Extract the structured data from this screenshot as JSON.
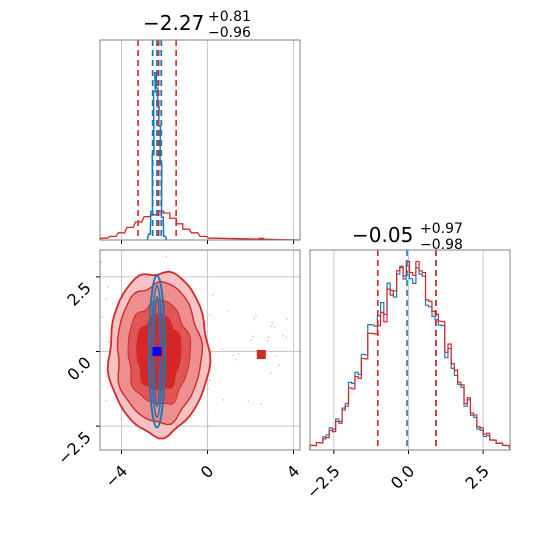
{
  "chart_data": {
    "type": "corner",
    "colors": {
      "red": "#d62728",
      "blue": "#1f77b4",
      "grid": "#c8c8c8",
      "frame": "#808080"
    },
    "params": [
      {
        "title": "−2.27",
        "upper": "+0.81",
        "lower": "−0.96",
        "median": -2.27,
        "range": [
          -5,
          4.3
        ]
      },
      {
        "title": "−0.05",
        "upper": "+0.97",
        "lower": "−0.98",
        "median": -0.05,
        "range": [
          -3.3,
          3.4
        ]
      }
    ],
    "x_ticks": [
      {
        "value": -4,
        "label": "−4"
      },
      {
        "value": 0,
        "label": "0"
      },
      {
        "value": 4,
        "label": "4"
      }
    ],
    "y_ticks": [
      {
        "value": 2.5,
        "label": "2.5"
      },
      {
        "value": 0.0,
        "label": "0.0"
      },
      {
        "value": -2.5,
        "label": "−2.5"
      }
    ],
    "x2_ticks": [
      {
        "value": -2.5,
        "label": "−2.5"
      },
      {
        "value": 0.0,
        "label": "0.0"
      },
      {
        "value": 2.5,
        "label": "2.5"
      }
    ],
    "hist1_red_quantiles": [
      -3.23,
      -2.27,
      -1.46
    ],
    "hist1_blue_quantiles": [
      -2.55,
      -2.35,
      -2.15
    ],
    "hist2_red_quantiles": [
      -1.03,
      -0.05,
      0.92
    ],
    "hist2_blue_quantiles": [
      -1.03,
      -0.05,
      0.92
    ],
    "hist1_red_heights": [
      0.01,
      0.02,
      0.04,
      0.07,
      0.1,
      0.13,
      0.14,
      0.16,
      0.15,
      0.12,
      0.09,
      0.06,
      0.04,
      0.02,
      0.01
    ],
    "hist1_red_centers": [
      -4.8,
      -4.4,
      -4.0,
      -3.6,
      -3.2,
      -2.8,
      -2.5,
      -2.2,
      -1.9,
      -1.6,
      -1.3,
      -1.0,
      -0.6,
      -0.2,
      0.2
    ],
    "hist1_blue_center": -2.35,
    "hist1_blue_width": 0.12,
    "hist2_red_heights": [
      0.02,
      0.03,
      0.05,
      0.08,
      0.12,
      0.18,
      0.25,
      0.32,
      0.4,
      0.47,
      0.52,
      0.58,
      0.66,
      0.72,
      0.75,
      0.8,
      0.78,
      0.72,
      0.66,
      0.6,
      0.52,
      0.44,
      0.36,
      0.28,
      0.21,
      0.15,
      0.1,
      0.07,
      0.04,
      0.03,
      0.02
    ],
    "hist2_blue_heights": [
      0.02,
      0.03,
      0.06,
      0.09,
      0.13,
      0.19,
      0.27,
      0.34,
      0.42,
      0.5,
      0.56,
      0.62,
      0.68,
      0.7,
      0.74,
      0.78,
      0.75,
      0.7,
      0.64,
      0.58,
      0.5,
      0.42,
      0.34,
      0.27,
      0.2,
      0.14,
      0.09,
      0.06,
      0.04,
      0.03,
      0.02
    ],
    "hist2_start": -3.3,
    "hist2_step": 0.215,
    "markers": [
      {
        "x": -2.27,
        "y": -0.05,
        "color": "#d62728"
      },
      {
        "x": 2.5,
        "y": -0.1,
        "color": "#d62728"
      },
      {
        "x": -2.35,
        "y": 0.0,
        "color": "#0000ff"
      }
    ]
  }
}
